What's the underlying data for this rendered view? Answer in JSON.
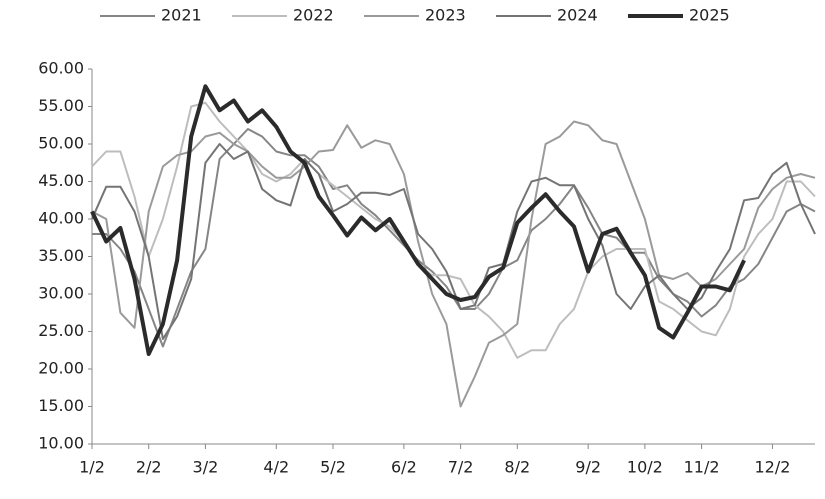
{
  "chart_data": {
    "type": "line",
    "categories": [
      "1/2",
      null,
      null,
      null,
      "2/2",
      null,
      null,
      null,
      "3/2",
      null,
      null,
      null,
      null,
      "4/2",
      null,
      null,
      null,
      "5/2",
      null,
      null,
      null,
      null,
      "6/2",
      null,
      null,
      null,
      "7/2",
      null,
      null,
      null,
      "8/2",
      null,
      null,
      null,
      null,
      "9/2",
      null,
      null,
      null,
      "10/2",
      null,
      null,
      null,
      "11/2",
      null,
      null,
      null,
      null,
      "12/2",
      null,
      null,
      null
    ],
    "ylim": [
      10,
      60
    ],
    "yticks": [
      {
        "value": 10,
        "label": "10.00"
      },
      {
        "value": 15,
        "label": "15.00"
      },
      {
        "value": 20,
        "label": "20.00"
      },
      {
        "value": 25,
        "label": "25.00"
      },
      {
        "value": 30,
        "label": "30.00"
      },
      {
        "value": 35,
        "label": "35.00"
      },
      {
        "value": 40,
        "label": "40.00"
      },
      {
        "value": 45,
        "label": "45.00"
      },
      {
        "value": 50,
        "label": "50.00"
      },
      {
        "value": 55,
        "label": "55.00"
      },
      {
        "value": 60,
        "label": "60.00"
      }
    ],
    "grid": false,
    "legend": "top",
    "series": [
      {
        "name": "2021",
        "color": "#858585",
        "width": 2,
        "values": [
          38,
          38,
          36,
          33,
          28,
          23,
          28,
          33,
          36,
          48,
          50,
          52,
          51,
          49,
          48.5,
          48.5,
          47,
          44,
          44.5,
          42,
          40.5,
          38.5,
          36.5,
          34.5,
          33,
          31,
          28,
          28,
          30,
          33.5,
          34.5,
          38.5,
          40,
          42,
          44.5,
          41.5,
          38,
          37.5,
          35.5,
          35.5,
          32,
          30,
          29,
          27,
          28.5,
          31,
          32,
          34,
          37.5,
          41,
          42,
          41
        ]
      },
      {
        "name": "2022",
        "color": "#bdbdbd",
        "width": 2,
        "values": [
          47,
          49,
          49,
          43,
          35,
          40,
          47,
          55,
          55.5,
          53,
          51,
          49,
          46,
          45,
          46,
          48,
          46,
          44.5,
          43,
          41.5,
          40,
          39,
          37,
          34,
          32.5,
          32.5,
          32,
          28.5,
          27,
          25,
          21.5,
          22.5,
          22.5,
          26,
          28,
          33,
          35,
          36,
          36,
          36,
          29,
          28,
          26.5,
          25,
          24.5,
          28,
          35,
          38,
          40,
          45,
          45,
          43
        ]
      },
      {
        "name": "2023",
        "color": "#9a9a9a",
        "width": 2,
        "values": [
          41,
          40,
          27.5,
          25.5,
          41,
          47,
          48.5,
          49,
          51,
          51.5,
          50,
          49,
          47,
          45.5,
          45.5,
          47,
          49,
          49.2,
          52.5,
          49.5,
          50.5,
          50,
          46,
          37,
          30,
          26,
          15,
          19,
          23.5,
          24.5,
          26,
          40,
          50,
          51,
          53,
          52.5,
          50.5,
          50,
          45,
          40,
          32.5,
          32,
          32.8,
          31,
          32,
          34,
          36,
          41.5,
          44,
          45.5,
          46,
          45.5
        ]
      },
      {
        "name": "2024",
        "color": "#747474",
        "width": 2,
        "values": [
          40,
          44.3,
          44.3,
          41,
          35,
          24,
          27,
          32,
          47.5,
          50,
          48,
          49,
          44,
          42.5,
          41.8,
          48,
          46,
          41,
          42,
          43.5,
          43.5,
          43.2,
          44,
          38,
          36,
          33,
          28,
          28.5,
          33.5,
          34,
          41,
          45,
          45.5,
          44.5,
          44.5,
          40,
          36.5,
          30,
          28,
          31,
          32.5,
          30,
          28,
          29.5,
          33,
          36,
          42.5,
          42.8,
          46,
          47.5,
          42,
          38
        ]
      },
      {
        "name": "2025",
        "color": "#2b2b2b",
        "width": 4,
        "values": [
          41,
          37,
          38.8,
          32,
          22,
          26,
          34.5,
          51,
          57.7,
          54.5,
          55.8,
          53,
          54.5,
          52.3,
          49,
          47.5,
          43,
          40.5,
          37.8,
          40.2,
          38.5,
          40,
          37,
          34,
          32,
          30,
          29.2,
          29.6,
          32.3,
          33.5,
          39.5,
          41.5,
          43.3,
          41,
          39,
          33,
          38,
          38.7,
          35.5,
          32.5,
          25.5,
          24.2,
          27.5,
          31,
          31,
          30.5,
          34.5,
          null,
          null,
          null,
          null,
          null
        ]
      }
    ]
  }
}
